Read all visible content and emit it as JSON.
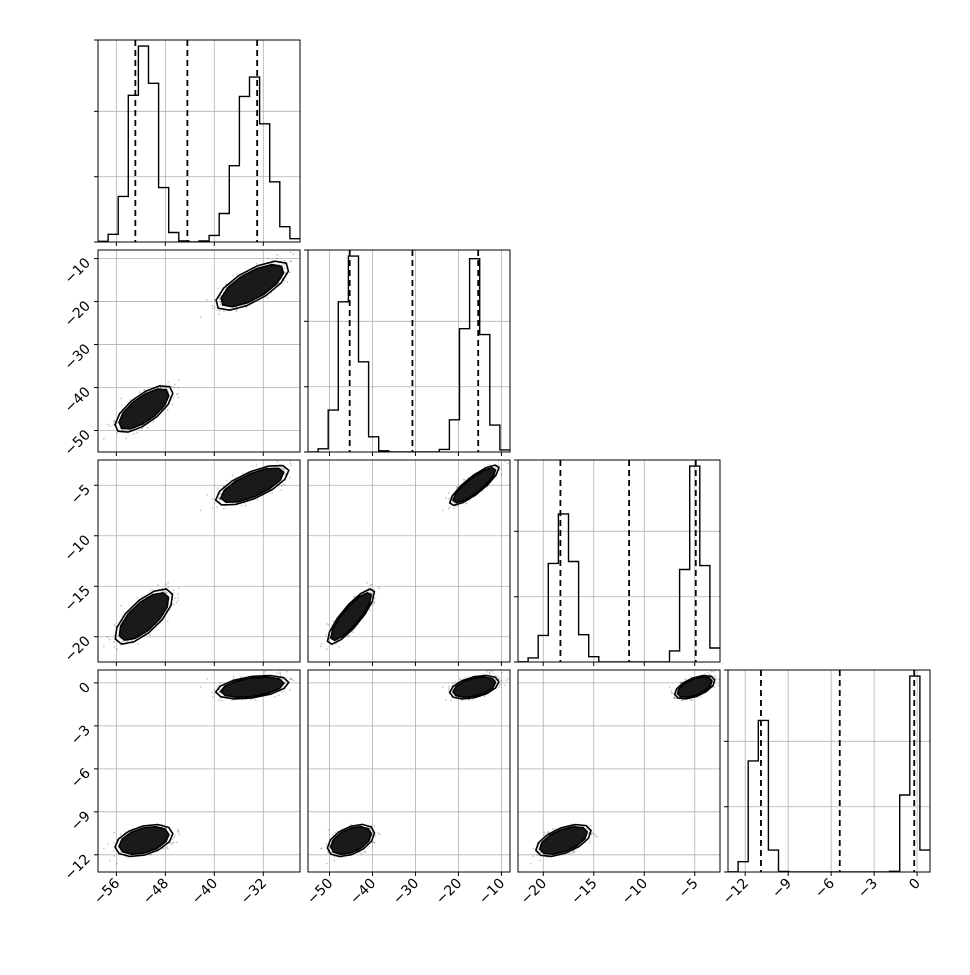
{
  "chart_data": {
    "type": "scatter",
    "kind": "corner-plot",
    "title": "",
    "n_params": 4,
    "grid": true,
    "colors": {
      "axes": "#000000",
      "grid": "#b0b0b0",
      "line": "#000000",
      "samples": "#000000"
    },
    "params": [
      {
        "range": [
          -59,
          -26
        ],
        "ticks": [
          -56,
          -48,
          -40,
          -32
        ],
        "tick_labels": [
          "−56",
          "−48",
          "−40",
          "−32"
        ]
      },
      {
        "range": [
          -55,
          -8
        ],
        "ticks": [
          -50,
          -40,
          -30,
          -20,
          -10
        ],
        "tick_labels": [
          "−50",
          "−40",
          "−30",
          "−20",
          "−10"
        ]
      },
      {
        "range": [
          -22.5,
          -2.5
        ],
        "ticks": [
          -20,
          -15,
          -10,
          -5
        ],
        "tick_labels": [
          "−20",
          "−15",
          "−10",
          "−5"
        ]
      },
      {
        "range": [
          -13.2,
          0.9
        ],
        "ticks": [
          -12,
          -9,
          -6,
          -3,
          0
        ],
        "tick_labels": [
          "−12",
          "−9",
          "−6",
          "−3",
          "0"
        ]
      }
    ],
    "quantiles": [
      [
        -52.9,
        -44.4,
        -33.0
      ],
      [
        -45.3,
        -30.7,
        -15.4
      ],
      [
        -18.3,
        -11.5,
        -4.9
      ],
      [
        -10.9,
        -5.4,
        -0.2
      ]
    ],
    "modes": [
      {
        "weight": 0.5,
        "mean": [
          -51.5,
          -45.0,
          -18.0,
          -11.0
        ],
        "sd": [
          1.9,
          2.2,
          1.1,
          0.45
        ]
      },
      {
        "weight": 0.5,
        "mean": [
          -33.8,
          -16.3,
          -5.0,
          -0.3
        ],
        "sd": [
          2.4,
          2.3,
          0.8,
          0.33
        ]
      }
    ],
    "correlations": [
      [
        1,
        0.7,
        0.7,
        0.4
      ],
      [
        0.7,
        1,
        0.85,
        0.45
      ],
      [
        0.7,
        0.85,
        1,
        0.55
      ],
      [
        0.4,
        0.45,
        0.55,
        1
      ]
    ],
    "histogram_bins": 20,
    "histogram_ylims": [
      1.0,
      1.0,
      1.0,
      1.0
    ],
    "histogram_ytick_fractions": [
      0.333,
      0.667
    ],
    "contour_levels": [
      0.6,
      0.3,
      0.1
    ],
    "contour_fills": [
      "#f2f2f2",
      "#c6c6c6",
      "#8c8c8c",
      "#1a1a1a"
    ]
  }
}
